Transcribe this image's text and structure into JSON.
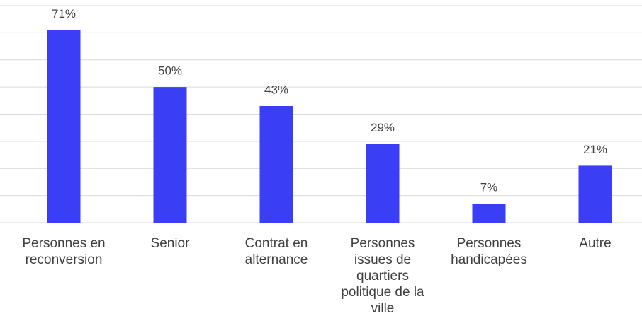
{
  "chart_data": {
    "type": "bar",
    "categories": [
      "Personnes en reconversion",
      "Senior",
      "Contrat en alternance",
      "Personnes issues de quartiers politique de la ville",
      "Personnes handicapées",
      "Autre"
    ],
    "values": [
      71,
      50,
      43,
      29,
      7,
      21
    ],
    "value_labels": [
      "71%",
      "50%",
      "43%",
      "29%",
      "7%",
      "21%"
    ],
    "color": "#3a3ef5",
    "ylim": [
      0,
      80
    ],
    "yticks": [
      0,
      10,
      20,
      30,
      40,
      50,
      60,
      70,
      80
    ],
    "grid": true
  }
}
